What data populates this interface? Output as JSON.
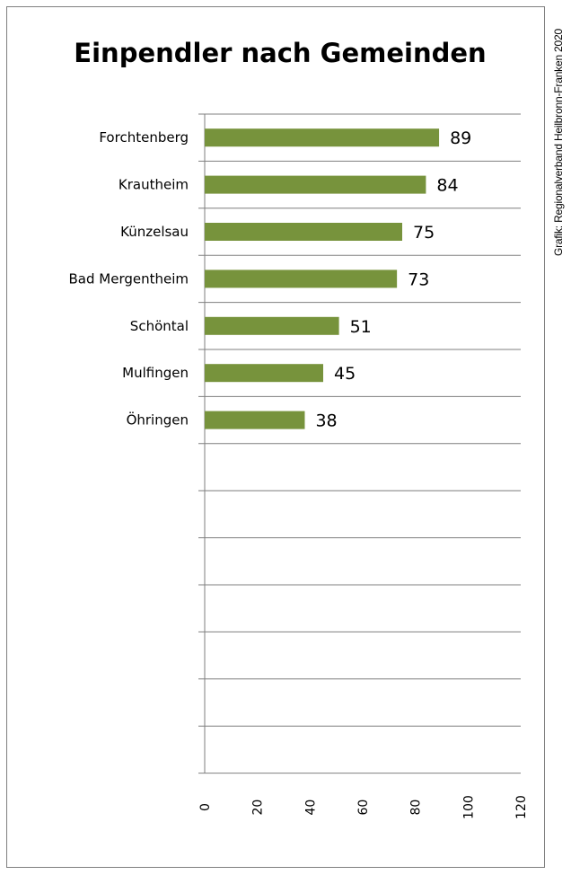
{
  "chart_data": {
    "type": "bar",
    "orientation": "horizontal",
    "title": "Einpendler nach Gemeinden",
    "categories": [
      "Forchtenberg",
      "Krautheim",
      "Künzelsau",
      "Bad Mergentheim",
      "Schöntal",
      "Mulfingen",
      "Öhringen"
    ],
    "values": [
      89,
      84,
      75,
      73,
      51,
      45,
      38
    ],
    "xlim": [
      0,
      120
    ],
    "x_ticks": [
      "0",
      "20",
      "40",
      "60",
      "80",
      "100",
      "120"
    ],
    "empty_category_slots": 7,
    "grid": "horizontal lines between category rows",
    "bar_color": "#77933c",
    "data_labels": true
  },
  "credit": "Grafik: Regionalverband Heilbronn-Franken 2020"
}
